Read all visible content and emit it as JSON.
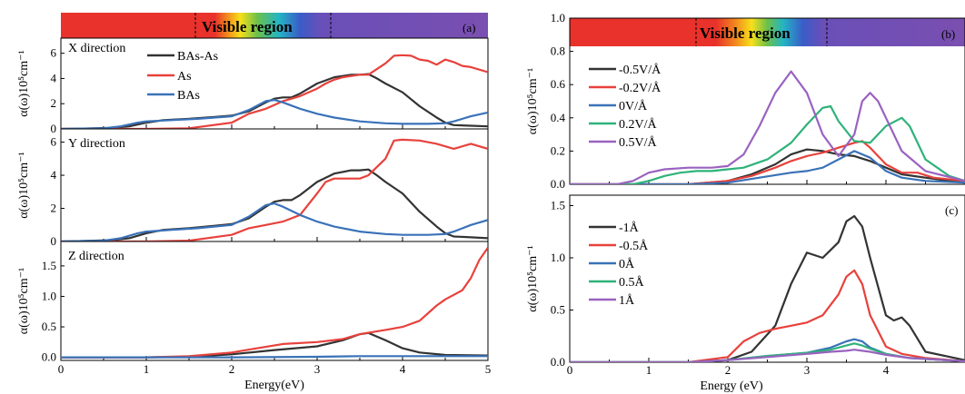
{
  "colors": {
    "BAs-As": "#333333",
    "As": "#e8413c",
    "BAs": "#3a72b8",
    "field_m05": "#333333",
    "field_m02": "#e8413c",
    "field_0": "#3a72b8",
    "field_02": "#2fb27a",
    "field_05": "#9a62c0"
  },
  "left": {
    "visible_label": "Visible region",
    "panel_label": "(a)",
    "xlabel": "Energy(eV)",
    "xticks": [
      "0",
      "1",
      "2",
      "3",
      "4",
      "5"
    ],
    "legend": [
      "BAs-As",
      "As",
      "BAs"
    ]
  },
  "chart_data": [
    {
      "type": "line",
      "panel": "a-x",
      "subtitle": "X direction",
      "xlabel": "Energy(eV)",
      "ylabel": "α(ω)10⁵cm⁻¹",
      "xlim": [
        0,
        5
      ],
      "ylim": [
        0,
        7.2
      ],
      "yticks": [
        "0",
        "2",
        "4",
        "6"
      ],
      "series": [
        {
          "name": "BAs-As",
          "x": [
            0,
            0.2,
            0.6,
            0.8,
            1.0,
            1.2,
            1.5,
            1.8,
            2.0,
            2.2,
            2.4,
            2.5,
            2.6,
            2.7,
            2.8,
            3.0,
            3.2,
            3.4,
            3.5,
            3.6,
            3.7,
            3.8,
            4.0,
            4.2,
            4.4,
            4.5,
            4.6,
            4.8,
            5.0
          ],
          "y": [
            0,
            0.02,
            0.08,
            0.2,
            0.5,
            0.7,
            0.8,
            0.95,
            1.05,
            1.4,
            2.1,
            2.4,
            2.5,
            2.5,
            2.8,
            3.6,
            4.1,
            4.3,
            4.3,
            4.35,
            4.0,
            3.6,
            2.9,
            1.8,
            0.9,
            0.5,
            0.3,
            0.25,
            0.2
          ]
        },
        {
          "name": "As",
          "x": [
            0,
            1.0,
            1.5,
            2.0,
            2.2,
            2.4,
            2.5,
            2.6,
            2.8,
            3.0,
            3.1,
            3.2,
            3.3,
            3.5,
            3.6,
            3.8,
            3.9,
            4.0,
            4.1,
            4.2,
            4.3,
            4.4,
            4.5,
            4.6,
            4.7,
            4.8,
            5.0
          ],
          "y": [
            0,
            0,
            0.05,
            0.5,
            1.2,
            1.6,
            1.9,
            2.2,
            2.6,
            3.2,
            3.6,
            3.9,
            4.1,
            4.3,
            4.3,
            5.2,
            5.8,
            5.85,
            5.8,
            5.5,
            5.4,
            5.1,
            5.5,
            5.3,
            5.0,
            4.9,
            4.5
          ]
        },
        {
          "name": "BAs",
          "x": [
            0,
            0.5,
            0.7,
            0.9,
            1.0,
            1.3,
            1.6,
            2.0,
            2.2,
            2.4,
            2.5,
            2.6,
            2.8,
            3.0,
            3.2,
            3.5,
            3.8,
            4.0,
            4.3,
            4.5,
            4.6,
            4.8,
            5.0
          ],
          "y": [
            0,
            0.05,
            0.2,
            0.5,
            0.6,
            0.7,
            0.8,
            1.0,
            1.5,
            2.2,
            2.3,
            2.1,
            1.6,
            1.2,
            0.9,
            0.6,
            0.45,
            0.4,
            0.4,
            0.45,
            0.6,
            1.0,
            1.3
          ]
        }
      ]
    },
    {
      "type": "line",
      "panel": "a-y",
      "subtitle": "Y direction",
      "xlabel": "Energy(eV)",
      "ylabel": "α(ω)10⁵cm⁻¹",
      "xlim": [
        0,
        5
      ],
      "ylim": [
        0,
        6.8
      ],
      "yticks": [
        "0",
        "2",
        "4",
        "6"
      ],
      "series": [
        {
          "name": "BAs-As",
          "x": [
            0,
            0.2,
            0.6,
            0.8,
            1.0,
            1.2,
            1.5,
            1.8,
            2.0,
            2.2,
            2.4,
            2.5,
            2.6,
            2.7,
            2.8,
            3.0,
            3.2,
            3.4,
            3.5,
            3.6,
            3.7,
            3.8,
            4.0,
            4.2,
            4.4,
            4.5,
            4.6,
            4.8,
            5.0
          ],
          "y": [
            0,
            0.02,
            0.08,
            0.2,
            0.5,
            0.7,
            0.8,
            0.95,
            1.05,
            1.4,
            2.1,
            2.4,
            2.5,
            2.5,
            2.8,
            3.6,
            4.1,
            4.3,
            4.3,
            4.35,
            4.0,
            3.6,
            2.9,
            1.8,
            0.9,
            0.5,
            0.3,
            0.25,
            0.2
          ]
        },
        {
          "name": "As",
          "x": [
            0,
            1.0,
            1.5,
            2.0,
            2.2,
            2.4,
            2.5,
            2.6,
            2.8,
            3.0,
            3.1,
            3.2,
            3.3,
            3.5,
            3.6,
            3.8,
            3.9,
            4.0,
            4.2,
            4.4,
            4.6,
            4.8,
            5.0
          ],
          "y": [
            0,
            0,
            0.05,
            0.4,
            0.8,
            1.0,
            1.1,
            1.2,
            1.6,
            2.9,
            3.6,
            3.8,
            3.8,
            3.8,
            4.0,
            5.0,
            6.1,
            6.15,
            6.1,
            5.9,
            5.6,
            5.9,
            5.6
          ]
        },
        {
          "name": "BAs",
          "x": [
            0,
            0.5,
            0.7,
            0.9,
            1.0,
            1.3,
            1.6,
            2.0,
            2.2,
            2.4,
            2.5,
            2.6,
            2.8,
            3.0,
            3.2,
            3.5,
            3.8,
            4.0,
            4.3,
            4.5,
            4.6,
            4.8,
            5.0
          ],
          "y": [
            0,
            0.05,
            0.2,
            0.5,
            0.6,
            0.7,
            0.8,
            1.0,
            1.5,
            2.2,
            2.3,
            2.1,
            1.6,
            1.2,
            0.9,
            0.6,
            0.45,
            0.4,
            0.4,
            0.45,
            0.6,
            1.0,
            1.3
          ]
        }
      ]
    },
    {
      "type": "line",
      "panel": "a-z",
      "subtitle": "Z direction",
      "xlabel": "Energy(eV)",
      "ylabel": "α(ω)10⁵cm⁻¹",
      "xlim": [
        0,
        5
      ],
      "ylim": [
        -0.05,
        1.9
      ],
      "yticks": [
        "0.0",
        "0.5",
        "1.0",
        "1.5"
      ],
      "series": [
        {
          "name": "BAs-As",
          "x": [
            0,
            1.0,
            1.5,
            2.0,
            2.5,
            3.0,
            3.3,
            3.5,
            3.6,
            3.8,
            4.0,
            4.2,
            4.5,
            5.0
          ],
          "y": [
            0,
            0,
            0.01,
            0.05,
            0.12,
            0.18,
            0.28,
            0.38,
            0.4,
            0.28,
            0.15,
            0.08,
            0.04,
            0.03
          ]
        },
        {
          "name": "As",
          "x": [
            0,
            1.0,
            1.5,
            2.0,
            2.3,
            2.6,
            3.0,
            3.3,
            3.5,
            3.8,
            4.0,
            4.2,
            4.4,
            4.5,
            4.7,
            4.8,
            4.9,
            5.0
          ],
          "y": [
            0,
            0,
            0.02,
            0.08,
            0.15,
            0.22,
            0.25,
            0.3,
            0.38,
            0.45,
            0.5,
            0.6,
            0.85,
            0.95,
            1.1,
            1.3,
            1.6,
            1.8
          ]
        },
        {
          "name": "BAs",
          "x": [
            0,
            1.0,
            2.0,
            3.0,
            3.5,
            4.0,
            5.0
          ],
          "y": [
            0,
            0,
            0,
            0.01,
            0.02,
            0.02,
            0.02
          ]
        }
      ]
    },
    {
      "type": "line",
      "panel": "b",
      "xlabel": "",
      "ylabel": "α(ω)10⁵cm⁻¹",
      "xlim": [
        0,
        5
      ],
      "ylim": [
        0,
        1.0
      ],
      "yticks": [
        "0.0",
        "0.2",
        "0.4",
        "0.6",
        "0.8",
        "1.0"
      ],
      "series": [
        {
          "name": "-0.5V/Å",
          "x": [
            0,
            1.5,
            2.0,
            2.3,
            2.6,
            2.8,
            3.0,
            3.2,
            3.4,
            3.6,
            3.8,
            4.0,
            4.2,
            4.5,
            4.8,
            5.0
          ],
          "y": [
            0,
            0,
            0.02,
            0.06,
            0.12,
            0.18,
            0.21,
            0.2,
            0.18,
            0.17,
            0.14,
            0.1,
            0.06,
            0.04,
            0.02,
            0.01
          ]
        },
        {
          "name": "-0.2V/Å",
          "x": [
            0,
            1.5,
            2.0,
            2.3,
            2.6,
            2.8,
            3.0,
            3.2,
            3.4,
            3.6,
            3.7,
            3.8,
            4.0,
            4.2,
            4.4,
            4.6,
            5.0
          ],
          "y": [
            0,
            0,
            0.02,
            0.05,
            0.1,
            0.14,
            0.17,
            0.19,
            0.22,
            0.25,
            0.26,
            0.22,
            0.12,
            0.07,
            0.07,
            0.04,
            0.02
          ]
        },
        {
          "name": "0V/Å",
          "x": [
            0,
            1.5,
            2.0,
            2.4,
            2.8,
            3.0,
            3.2,
            3.4,
            3.6,
            3.8,
            4.0,
            4.2,
            4.5,
            5.0
          ],
          "y": [
            0,
            0,
            0.01,
            0.04,
            0.07,
            0.08,
            0.1,
            0.15,
            0.2,
            0.16,
            0.08,
            0.04,
            0.02,
            0.01
          ]
        },
        {
          "name": "0.2V/Å",
          "x": [
            0,
            0.8,
            1.0,
            1.2,
            1.4,
            1.6,
            1.8,
            2.0,
            2.2,
            2.5,
            2.8,
            3.0,
            3.2,
            3.3,
            3.4,
            3.6,
            3.8,
            4.0,
            4.2,
            4.3,
            4.5,
            4.8,
            5.0
          ],
          "y": [
            0,
            0,
            0.02,
            0.05,
            0.07,
            0.08,
            0.08,
            0.09,
            0.1,
            0.15,
            0.25,
            0.36,
            0.46,
            0.47,
            0.38,
            0.26,
            0.25,
            0.35,
            0.4,
            0.35,
            0.15,
            0.05,
            0.02
          ]
        },
        {
          "name": "0.5V/Å",
          "x": [
            0,
            0.6,
            0.8,
            1.0,
            1.2,
            1.5,
            1.8,
            2.0,
            2.2,
            2.4,
            2.6,
            2.8,
            3.0,
            3.2,
            3.4,
            3.6,
            3.7,
            3.8,
            3.9,
            4.0,
            4.2,
            4.5,
            5.0
          ],
          "y": [
            0,
            0,
            0.02,
            0.07,
            0.09,
            0.1,
            0.1,
            0.11,
            0.18,
            0.35,
            0.55,
            0.68,
            0.55,
            0.3,
            0.17,
            0.3,
            0.5,
            0.55,
            0.5,
            0.4,
            0.2,
            0.08,
            0.02
          ]
        }
      ]
    },
    {
      "type": "line",
      "panel": "c",
      "xlabel": "Energy (eV)",
      "ylabel": "α(ω)10⁵cm⁻¹",
      "xlim": [
        0,
        5
      ],
      "ylim": [
        0,
        1.6
      ],
      "yticks": [
        "0.0",
        "0.5",
        "1.0",
        "1.5"
      ],
      "xticks": [
        "0",
        "1",
        "2",
        "3",
        "4"
      ],
      "series": [
        {
          "name": "-1Å",
          "x": [
            0,
            1.5,
            2.0,
            2.3,
            2.6,
            2.8,
            3.0,
            3.2,
            3.4,
            3.5,
            3.6,
            3.7,
            3.8,
            4.0,
            4.1,
            4.2,
            4.3,
            4.5,
            5.0
          ],
          "y": [
            0,
            0,
            0.02,
            0.1,
            0.35,
            0.75,
            1.05,
            1.0,
            1.15,
            1.35,
            1.4,
            1.3,
            1.0,
            0.45,
            0.4,
            0.43,
            0.35,
            0.1,
            0.02
          ]
        },
        {
          "name": "-0.5Å",
          "x": [
            0,
            1.5,
            2.0,
            2.2,
            2.4,
            2.6,
            2.8,
            3.0,
            3.2,
            3.4,
            3.5,
            3.6,
            3.7,
            3.8,
            4.0,
            4.2,
            4.5,
            5.0
          ],
          "y": [
            0,
            0,
            0.05,
            0.2,
            0.28,
            0.32,
            0.35,
            0.38,
            0.45,
            0.65,
            0.82,
            0.88,
            0.75,
            0.45,
            0.15,
            0.08,
            0.04,
            0.01
          ]
        },
        {
          "name": "0Å",
          "x": [
            0,
            1.5,
            2.0,
            2.5,
            3.0,
            3.3,
            3.5,
            3.6,
            3.7,
            3.8,
            4.0,
            4.3,
            5.0
          ],
          "y": [
            0,
            0,
            0.02,
            0.06,
            0.09,
            0.14,
            0.2,
            0.22,
            0.2,
            0.14,
            0.08,
            0.04,
            0.01
          ]
        },
        {
          "name": "0.5Å",
          "x": [
            0,
            1.5,
            2.0,
            2.5,
            3.0,
            3.3,
            3.5,
            3.6,
            3.7,
            3.8,
            4.0,
            4.3,
            5.0
          ],
          "y": [
            0,
            0,
            0.02,
            0.06,
            0.09,
            0.12,
            0.16,
            0.18,
            0.16,
            0.13,
            0.08,
            0.04,
            0.01
          ]
        },
        {
          "name": "1Å",
          "x": [
            0,
            1.5,
            2.0,
            2.5,
            3.0,
            3.3,
            3.5,
            3.6,
            3.7,
            3.8,
            4.0,
            4.3,
            5.0
          ],
          "y": [
            0,
            0,
            0.02,
            0.05,
            0.08,
            0.1,
            0.11,
            0.12,
            0.11,
            0.1,
            0.07,
            0.04,
            0.01
          ]
        }
      ]
    }
  ],
  "right": {
    "visible_label": "Visible region",
    "label_b": "(b)",
    "label_c": "(c)"
  }
}
